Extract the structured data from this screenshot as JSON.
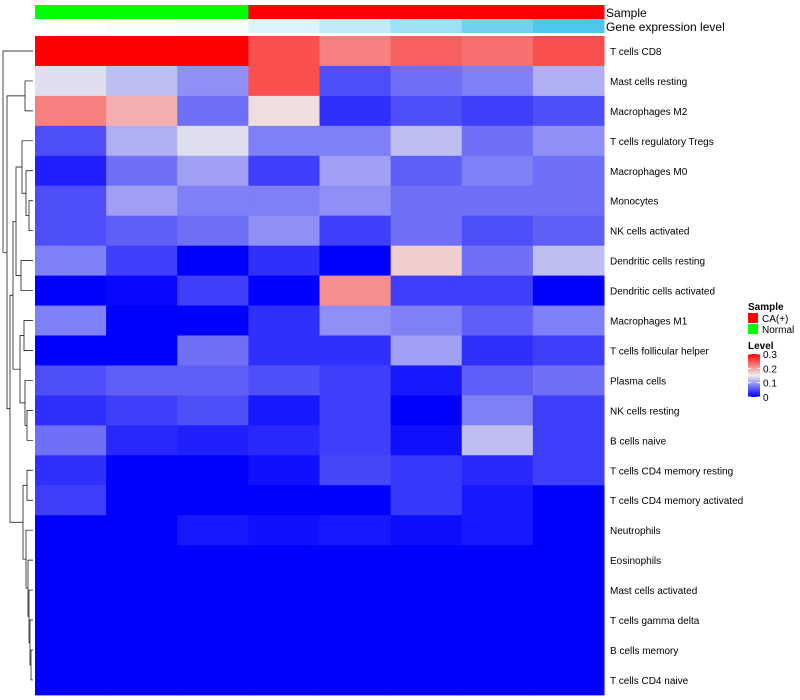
{
  "chart_data": {
    "type": "heatmap",
    "annotation_labels": {
      "sample": "Sample",
      "expression": "Gene expression level"
    },
    "columns": [
      {
        "sample": "Normal",
        "expression": 0.0
      },
      {
        "sample": "Normal",
        "expression": 0.03
      },
      {
        "sample": "Normal",
        "expression": 0.06
      },
      {
        "sample": "CA(+)",
        "expression": 0.2
      },
      {
        "sample": "CA(+)",
        "expression": 0.35
      },
      {
        "sample": "CA(+)",
        "expression": 0.55
      },
      {
        "sample": "CA(+)",
        "expression": 0.8
      },
      {
        "sample": "CA(+)",
        "expression": 1.0
      }
    ],
    "rows": [
      "T cells CD8",
      "Mast cells resting",
      "Macrophages M2",
      "T cells regulatory  Tregs",
      "Macrophages M0",
      "Monocytes",
      "NK cells activated",
      "Dendritic cells resting",
      "Dendritic cells activated",
      "Macrophages M1",
      "T cells follicular helper",
      "Plasma cells",
      "NK cells resting",
      "B cells naive",
      "T cells CD4 memory resting",
      "T cells CD4 memory activated",
      "Neutrophils",
      "Eosinophils",
      "Mast cells activated",
      "T cells gamma delta",
      "B cells memory",
      "T cells CD4 naive"
    ],
    "values": [
      [
        0.3,
        0.3,
        0.3,
        0.25,
        0.22,
        0.24,
        0.23,
        0.25
      ],
      [
        0.14,
        0.12,
        0.09,
        0.25,
        0.05,
        0.07,
        0.08,
        0.11
      ],
      [
        0.22,
        0.19,
        0.07,
        0.16,
        0.03,
        0.05,
        0.04,
        0.05
      ],
      [
        0.05,
        0.11,
        0.14,
        0.08,
        0.08,
        0.12,
        0.07,
        0.09
      ],
      [
        0.02,
        0.07,
        0.1,
        0.04,
        0.1,
        0.06,
        0.08,
        0.07
      ],
      [
        0.05,
        0.1,
        0.08,
        0.08,
        0.09,
        0.07,
        0.07,
        0.07
      ],
      [
        0.05,
        0.06,
        0.07,
        0.09,
        0.04,
        0.07,
        0.05,
        0.06
      ],
      [
        0.08,
        0.04,
        0.0,
        0.03,
        0.0,
        0.17,
        0.07,
        0.12
      ],
      [
        0.0,
        0.005,
        0.04,
        0.0,
        0.21,
        0.04,
        0.04,
        0.0
      ],
      [
        0.08,
        0.0,
        0.0,
        0.03,
        0.09,
        0.08,
        0.06,
        0.08
      ],
      [
        0.0,
        0.0,
        0.07,
        0.03,
        0.03,
        0.1,
        0.03,
        0.04
      ],
      [
        0.05,
        0.06,
        0.06,
        0.05,
        0.04,
        0.015,
        0.06,
        0.07
      ],
      [
        0.03,
        0.04,
        0.05,
        0.015,
        0.04,
        0.0,
        0.08,
        0.04
      ],
      [
        0.07,
        0.025,
        0.02,
        0.025,
        0.04,
        0.01,
        0.12,
        0.04
      ],
      [
        0.03,
        0.0,
        0.0,
        0.01,
        0.045,
        0.035,
        0.025,
        0.04
      ],
      [
        0.04,
        0.0,
        0.0,
        0.0,
        0.0,
        0.035,
        0.015,
        0.0
      ],
      [
        0.0,
        0.0,
        0.015,
        0.01,
        0.015,
        0.008,
        0.015,
        0.0
      ],
      [
        0.0,
        0.0,
        0.0,
        0.0,
        0.0,
        0.0,
        0.0,
        0.0
      ],
      [
        0.0,
        0.0,
        0.0,
        0.0,
        0.0,
        0.0,
        0.0,
        0.0
      ],
      [
        0.0,
        0.0,
        0.0,
        0.0,
        0.0,
        0.0,
        0.0,
        0.0
      ],
      [
        0.0,
        0.0,
        0.0,
        0.0,
        0.0,
        0.0,
        0.0,
        0.0
      ],
      [
        0.0,
        0.0,
        0.0,
        0.0,
        0.0,
        0.0,
        0.0,
        0.0
      ]
    ],
    "color_scale": {
      "low": "#0000ff",
      "mid": "#eeeeee",
      "high": "#ff0000",
      "min": 0,
      "mid_value": 0.15,
      "max": 0.3
    },
    "sample_colors": {
      "CA(+)": "#ff0000",
      "Normal": "#00ff00"
    },
    "expression_colors": {
      "low": "#ffffff",
      "high": "#4fc6ee"
    },
    "legend": {
      "sample_title": "Sample",
      "sample_entries": [
        "CA(+)",
        "Normal"
      ],
      "level_title": "Level",
      "level_ticks": [
        {
          "label": "0.3",
          "value": 0.3
        },
        {
          "label": "0.2",
          "value": 0.2
        },
        {
          "label": "0.1",
          "value": 0.1
        },
        {
          "label": "0",
          "value": 0
        }
      ],
      "placement": "right"
    },
    "row_dendrogram": true
  }
}
